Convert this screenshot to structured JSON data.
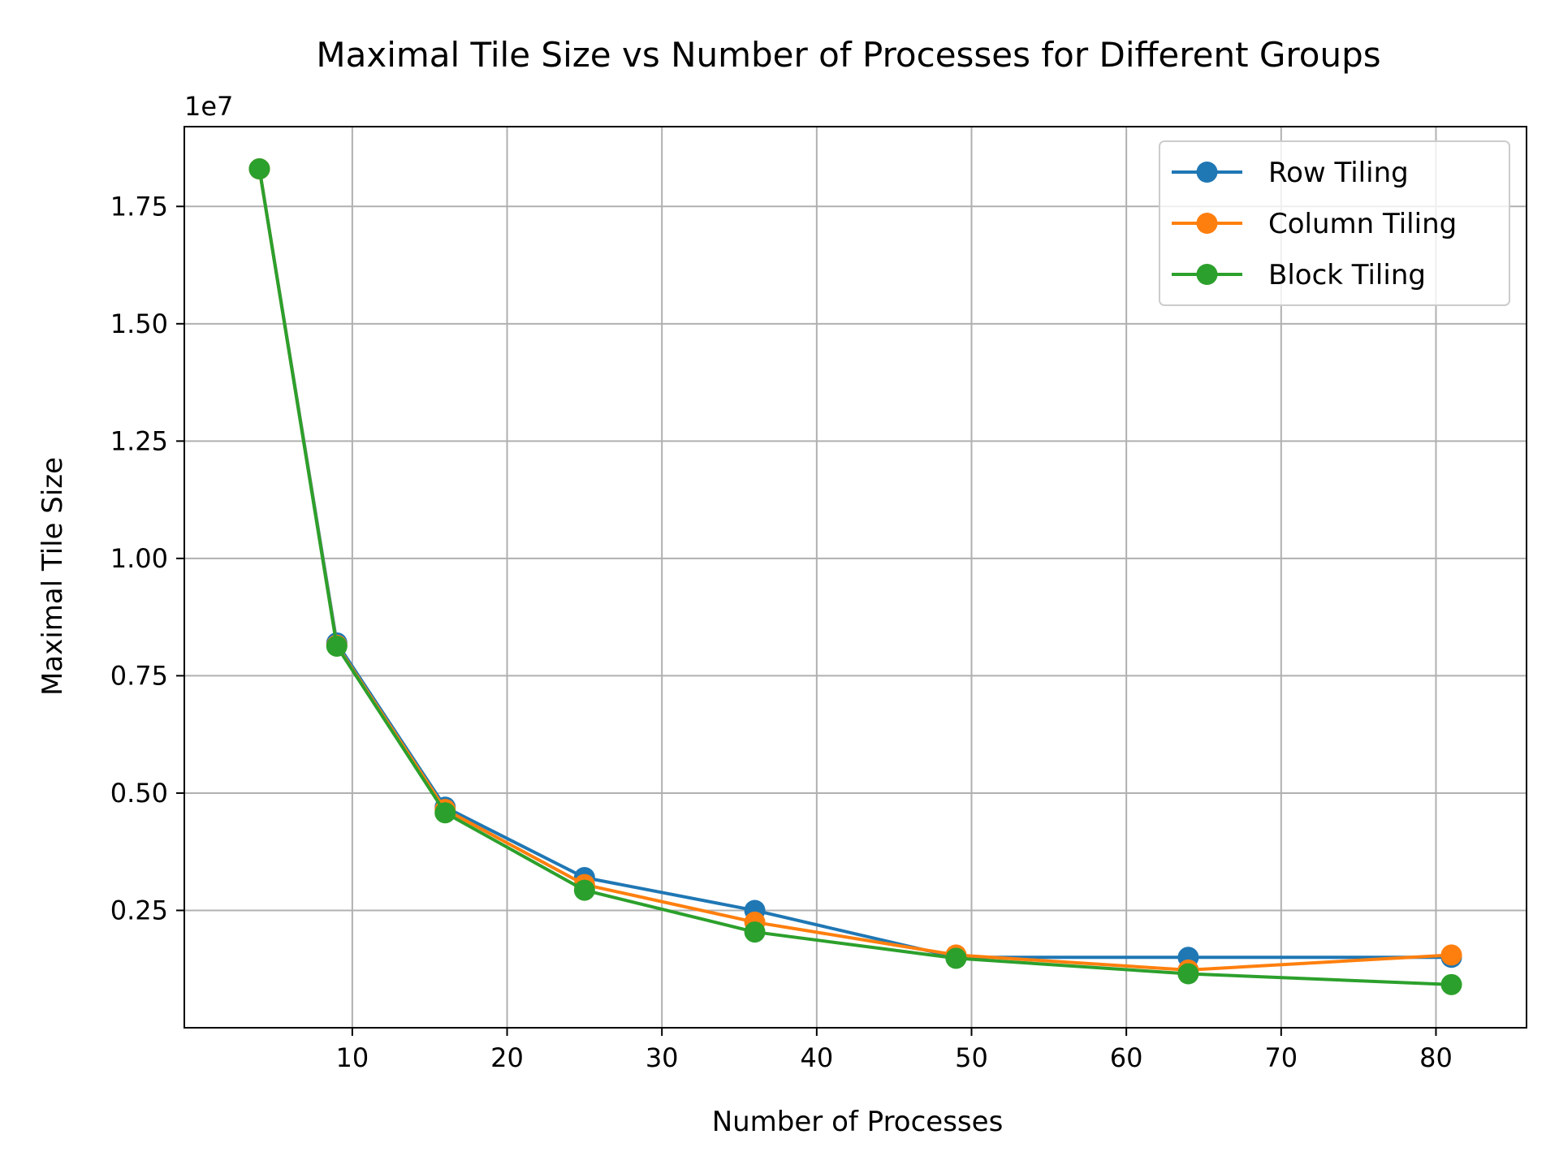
{
  "chart_data": {
    "type": "line",
    "title": "Maximal Tile Size vs Number of Processes for Different Groups",
    "xlabel": "Number of Processes",
    "ylabel": "Maximal Tile Size",
    "y_offset_label": "1e7",
    "xlim": [
      -0.85,
      85.85
    ],
    "ylim": [
      0,
      19200000
    ],
    "x_ticks": [
      10,
      20,
      30,
      40,
      50,
      60,
      70,
      80
    ],
    "x_tick_labels": [
      "10",
      "20",
      "30",
      "40",
      "50",
      "60",
      "70",
      "80"
    ],
    "y_ticks": [
      2500000,
      5000000,
      7500000,
      10000000,
      12500000,
      15000000,
      17500000
    ],
    "y_tick_labels": [
      "0.25",
      "0.50",
      "0.75",
      "1.00",
      "1.25",
      "1.50",
      "1.75"
    ],
    "grid": true,
    "legend_position": "top-right",
    "x": [
      4,
      9,
      16,
      25,
      36,
      49,
      64,
      81
    ],
    "series": [
      {
        "name": "Row Tiling",
        "color": "#1f77b4",
        "values": [
          18300000,
          8200000,
          4700000,
          3200000,
          2500000,
          1500000,
          1500000,
          1500000
        ]
      },
      {
        "name": "Column Tiling",
        "color": "#ff7f0e",
        "values": [
          18300000,
          8150000,
          4650000,
          3050000,
          2250000,
          1550000,
          1230000,
          1550000
        ]
      },
      {
        "name": "Block Tiling",
        "color": "#2ca02c",
        "values": [
          18300000,
          8130000,
          4580000,
          2930000,
          2040000,
          1480000,
          1150000,
          920000
        ]
      }
    ]
  }
}
